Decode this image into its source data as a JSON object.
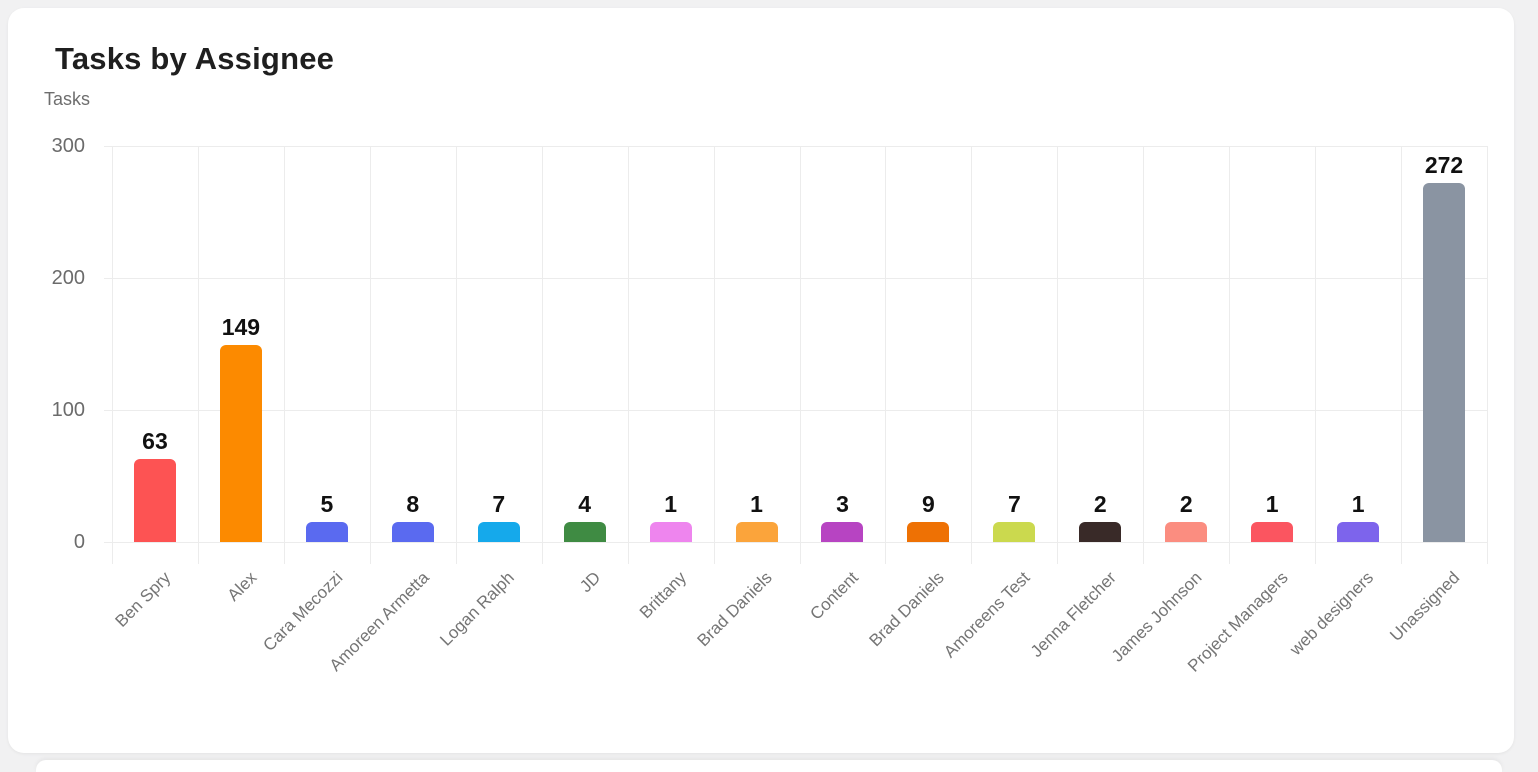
{
  "page": {
    "background": "#f1f1f2"
  },
  "card": {
    "title": "Tasks by Assignee",
    "subtitle": "Tasks"
  },
  "chart_data": {
    "type": "bar",
    "title": "Tasks by Assignee",
    "ylabel": "Tasks",
    "xlabel": "",
    "categories": [
      "Ben Spry",
      "Alex",
      "Cara Mecozzi",
      "Amoreen Armetta",
      "Logan Ralph",
      "JD",
      "Brittany",
      "Brad Daniels",
      "Content",
      "Brad Daniels",
      "Amoreens Test",
      "Jenna Fletcher",
      "James Johnson",
      "Project Managers",
      "web designers",
      "Unassigned"
    ],
    "values": [
      63,
      149,
      5,
      8,
      7,
      4,
      1,
      1,
      3,
      9,
      7,
      2,
      2,
      1,
      1,
      272
    ],
    "bar_colors": [
      "#fd5353",
      "#fc8a00",
      "#5a6af0",
      "#5a6af0",
      "#15a9eb",
      "#3f8b43",
      "#ee85ee",
      "#fba43b",
      "#b744c2",
      "#ee7104",
      "#cbd94e",
      "#392a28",
      "#fb8d80",
      "#fb5560",
      "#7d64ec",
      "#8a94a2"
    ],
    "ylim": [
      0,
      300
    ],
    "yticks": [
      0,
      100,
      200,
      300
    ],
    "grid": true,
    "legend": "none",
    "x_tick_rotation": -45,
    "data_labels": true
  }
}
